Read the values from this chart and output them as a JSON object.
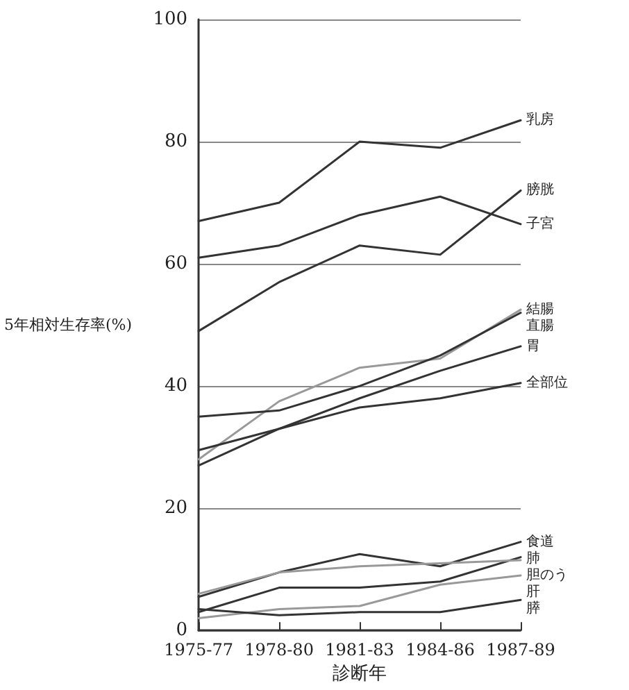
{
  "chart_data": {
    "type": "line",
    "xlabel": "診断年",
    "ylabel": "5年相対生存率(%)",
    "categories": [
      "1975-77",
      "1978-80",
      "1981-83",
      "1984-86",
      "1987-89"
    ],
    "ylim": [
      0,
      100
    ],
    "yticks": [
      0,
      20,
      40,
      60,
      80,
      100
    ],
    "grid": "y",
    "legend": false,
    "marker": "none",
    "line_style": "solid",
    "series": [
      {
        "name": "乳房",
        "color": "#333333",
        "values": [
          67,
          70,
          80,
          79,
          83.5
        ]
      },
      {
        "name": "膀胱",
        "color": "#333333",
        "values": [
          49,
          57,
          63,
          61.5,
          72
        ]
      },
      {
        "name": "子宮",
        "color": "#333333",
        "values": [
          61,
          63,
          68,
          71,
          66.5
        ]
      },
      {
        "name": "結腸",
        "color": "#999999",
        "values": [
          28,
          37.5,
          43,
          44.5,
          52.5
        ]
      },
      {
        "name": "直腸",
        "color": "#333333",
        "values": [
          35,
          36,
          40,
          45,
          52
        ]
      },
      {
        "name": "胃",
        "color": "#333333",
        "values": [
          27,
          33,
          38,
          42.5,
          46.5
        ]
      },
      {
        "name": "全部位",
        "color": "#333333",
        "values": [
          29.5,
          33,
          36.5,
          38,
          40.5
        ]
      },
      {
        "name": "食道",
        "color": "#333333",
        "values": [
          5.5,
          9.5,
          12.5,
          10.5,
          14.5
        ]
      },
      {
        "name": "肺",
        "color": "#333333",
        "values": [
          3,
          7,
          7,
          8,
          12
        ]
      },
      {
        "name": "胆のう",
        "color": "#999999",
        "values": [
          6,
          9.5,
          10.5,
          11,
          11.5
        ]
      },
      {
        "name": "肝",
        "color": "#999999",
        "values": [
          2,
          3.5,
          4,
          7.5,
          9
        ]
      },
      {
        "name": "膵",
        "color": "#333333",
        "values": [
          3.5,
          2.5,
          3,
          3,
          5
        ]
      }
    ]
  }
}
